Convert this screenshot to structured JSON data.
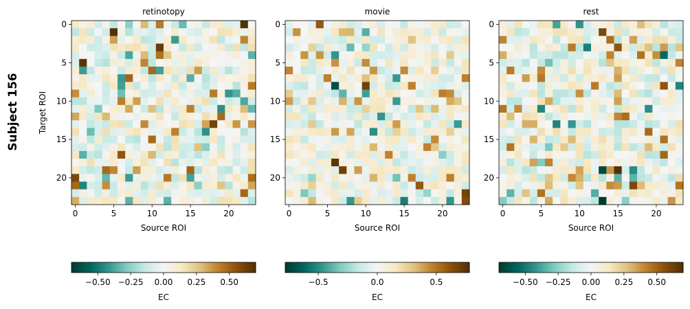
{
  "figure": {
    "subject_label": "Subject 156",
    "colormap": "BrBG_r"
  },
  "chart_data": [
    {
      "type": "heatmap",
      "title": "retinotopy",
      "xlabel": "Source ROI",
      "ylabel": "Target ROI",
      "n": 24,
      "xticks": [
        0,
        5,
        10,
        15,
        20
      ],
      "yticks": [
        0,
        5,
        10,
        15,
        20
      ],
      "vmin": -0.7,
      "vmax": 0.7,
      "colorbar": {
        "label": "EC",
        "ticks": [
          -0.5,
          -0.25,
          0.0,
          0.25,
          0.5
        ],
        "tick_labels": [
          "−0.50",
          "−0.25",
          "0.00",
          "0.25",
          "0.50"
        ]
      },
      "strong_cells": [
        {
          "row": 0,
          "col": 22,
          "value": 0.7
        },
        {
          "row": 1,
          "col": 5,
          "value": 0.7
        },
        {
          "row": 3,
          "col": 11,
          "value": 0.65
        },
        {
          "row": 5,
          "col": 1,
          "value": 0.68
        },
        {
          "row": 4,
          "col": 23,
          "value": -0.35
        },
        {
          "row": 8,
          "col": 6,
          "value": -0.4
        },
        {
          "row": 13,
          "col": 18,
          "value": 0.62
        },
        {
          "row": 17,
          "col": 6,
          "value": 0.55
        },
        {
          "row": 20,
          "col": 0,
          "value": 0.6
        },
        {
          "row": 23,
          "col": 7,
          "value": -0.35
        },
        {
          "row": 23,
          "col": 12,
          "value": -0.35
        }
      ]
    },
    {
      "type": "heatmap",
      "title": "movie",
      "xlabel": "Source ROI",
      "ylabel": "",
      "n": 24,
      "xticks": [
        0,
        5,
        10,
        15,
        20
      ],
      "yticks": [
        0,
        5,
        10,
        15,
        20
      ],
      "vmin": -0.78,
      "vmax": 0.78,
      "colorbar": {
        "label": "EC",
        "ticks": [
          -0.5,
          0.0,
          0.5
        ],
        "tick_labels": [
          "−0.5",
          "0.0",
          "0.5"
        ]
      },
      "strong_cells": [
        {
          "row": 0,
          "col": 4,
          "value": 0.6
        },
        {
          "row": 8,
          "col": 6,
          "value": -0.7
        },
        {
          "row": 8,
          "col": 10,
          "value": 0.7
        },
        {
          "row": 18,
          "col": 6,
          "value": 0.75
        },
        {
          "row": 19,
          "col": 7,
          "value": 0.7
        },
        {
          "row": 21,
          "col": 17,
          "value": 0.6
        },
        {
          "row": 23,
          "col": 15,
          "value": -0.55
        },
        {
          "row": 23,
          "col": 23,
          "value": 0.65
        },
        {
          "row": 22,
          "col": 23,
          "value": 0.7
        }
      ]
    },
    {
      "type": "heatmap",
      "title": "rest",
      "xlabel": "Source ROI",
      "ylabel": "",
      "n": 24,
      "xticks": [
        0,
        5,
        10,
        15,
        20
      ],
      "yticks": [
        0,
        5,
        10,
        15,
        20
      ],
      "vmin": -0.7,
      "vmax": 0.7,
      "colorbar": {
        "label": "EC",
        "ticks": [
          -0.5,
          -0.25,
          0.0,
          0.25,
          0.5
        ],
        "tick_labels": [
          "−0.50",
          "−0.25",
          "0.00",
          "0.25",
          "0.50"
        ]
      },
      "strong_cells": [
        {
          "row": 1,
          "col": 13,
          "value": 0.6
        },
        {
          "row": 3,
          "col": 15,
          "value": 0.55
        },
        {
          "row": 4,
          "col": 21,
          "value": -0.55
        },
        {
          "row": 8,
          "col": 21,
          "value": 0.55
        },
        {
          "row": 19,
          "col": 13,
          "value": -0.65
        },
        {
          "row": 19,
          "col": 15,
          "value": 0.7
        },
        {
          "row": 23,
          "col": 13,
          "value": -0.7
        },
        {
          "row": 21,
          "col": 17,
          "value": 0.6
        }
      ]
    }
  ]
}
